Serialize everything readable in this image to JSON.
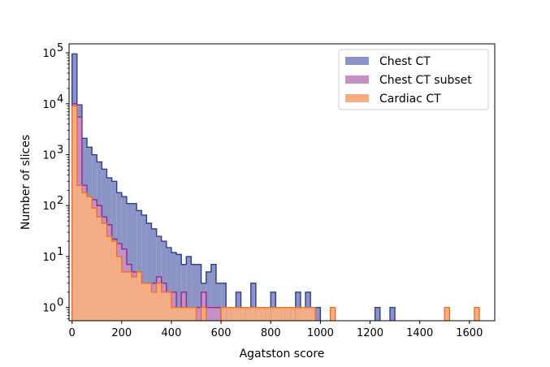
{
  "chart_data": {
    "type": "histogram",
    "xlabel": "Agatston score",
    "ylabel": "Number of slices",
    "xlim": [
      -12,
      1702
    ],
    "ylim": [
      0.55,
      150000
    ],
    "y_scale": "log",
    "x_ticks": [
      0,
      200,
      400,
      600,
      800,
      1000,
      1200,
      1400,
      1600
    ],
    "y_ticks": [
      {
        "value": 1,
        "base": "10",
        "exp": "0"
      },
      {
        "value": 10,
        "base": "10",
        "exp": "1"
      },
      {
        "value": 100,
        "base": "10",
        "exp": "2"
      },
      {
        "value": 1000,
        "base": "10",
        "exp": "3"
      },
      {
        "value": 10000,
        "base": "10",
        "exp": "4"
      },
      {
        "value": 100000,
        "base": "10",
        "exp": "5"
      }
    ],
    "bin_width": 20,
    "legend_position": "top-right",
    "series": [
      {
        "name": "Chest CT",
        "fill": "#8c94c6",
        "edge": "#2e3d8f",
        "bins": [
          [
            0,
            95000
          ],
          [
            20,
            9500
          ],
          [
            40,
            2100
          ],
          [
            60,
            1400
          ],
          [
            80,
            1000
          ],
          [
            100,
            720
          ],
          [
            120,
            520
          ],
          [
            140,
            350
          ],
          [
            160,
            300
          ],
          [
            180,
            180
          ],
          [
            200,
            150
          ],
          [
            220,
            110
          ],
          [
            240,
            110
          ],
          [
            260,
            80
          ],
          [
            280,
            65
          ],
          [
            300,
            45
          ],
          [
            320,
            35
          ],
          [
            340,
            25
          ],
          [
            360,
            20
          ],
          [
            380,
            15
          ],
          [
            400,
            12
          ],
          [
            420,
            11
          ],
          [
            440,
            7
          ],
          [
            460,
            10
          ],
          [
            480,
            7
          ],
          [
            500,
            7
          ],
          [
            520,
            3
          ],
          [
            540,
            5
          ],
          [
            560,
            7
          ],
          [
            580,
            3
          ],
          [
            600,
            3
          ],
          [
            640,
            1
          ],
          [
            660,
            2
          ],
          [
            700,
            1
          ],
          [
            720,
            3
          ],
          [
            760,
            1
          ],
          [
            800,
            2
          ],
          [
            820,
            1
          ],
          [
            860,
            1
          ],
          [
            900,
            2
          ],
          [
            940,
            2
          ],
          [
            960,
            1
          ],
          [
            980,
            1
          ],
          [
            1220,
            1
          ],
          [
            1280,
            1
          ]
        ]
      },
      {
        "name": "Chest CT subset",
        "fill": "#c690c6",
        "edge": "#8c2c8c",
        "bins": [
          [
            0,
            10000
          ],
          [
            20,
            5500
          ],
          [
            40,
            250
          ],
          [
            60,
            150
          ],
          [
            80,
            130
          ],
          [
            100,
            100
          ],
          [
            120,
            60
          ],
          [
            140,
            42
          ],
          [
            160,
            22
          ],
          [
            180,
            18
          ],
          [
            200,
            14
          ],
          [
            220,
            7
          ],
          [
            240,
            5
          ],
          [
            260,
            5
          ],
          [
            280,
            3
          ],
          [
            300,
            3
          ],
          [
            320,
            3
          ],
          [
            340,
            4
          ],
          [
            360,
            3
          ],
          [
            380,
            2
          ],
          [
            400,
            2
          ],
          [
            420,
            1
          ],
          [
            440,
            2
          ],
          [
            460,
            1
          ],
          [
            480,
            1
          ],
          [
            500,
            1
          ],
          [
            520,
            2
          ],
          [
            540,
            1
          ],
          [
            560,
            1
          ],
          [
            580,
            1
          ],
          [
            640,
            1
          ]
        ]
      },
      {
        "name": "Cardiac CT",
        "fill": "#f4ae86",
        "edge": "#f07028",
        "bins": [
          [
            0,
            9000
          ],
          [
            20,
            250
          ],
          [
            40,
            180
          ],
          [
            60,
            150
          ],
          [
            80,
            90
          ],
          [
            100,
            60
          ],
          [
            120,
            45
          ],
          [
            140,
            25
          ],
          [
            160,
            20
          ],
          [
            180,
            10
          ],
          [
            200,
            5
          ],
          [
            220,
            5
          ],
          [
            240,
            4
          ],
          [
            260,
            5
          ],
          [
            280,
            3
          ],
          [
            300,
            3
          ],
          [
            320,
            2
          ],
          [
            340,
            3
          ],
          [
            360,
            2
          ],
          [
            380,
            2
          ],
          [
            400,
            1
          ],
          [
            420,
            1
          ],
          [
            440,
            1
          ],
          [
            460,
            1
          ],
          [
            480,
            1
          ],
          [
            520,
            1
          ],
          [
            600,
            1
          ],
          [
            620,
            1
          ],
          [
            640,
            1
          ],
          [
            660,
            1
          ],
          [
            680,
            1
          ],
          [
            700,
            1
          ],
          [
            720,
            1
          ],
          [
            740,
            1
          ],
          [
            760,
            1
          ],
          [
            780,
            1
          ],
          [
            800,
            1
          ],
          [
            820,
            1
          ],
          [
            840,
            1
          ],
          [
            860,
            1
          ],
          [
            880,
            1
          ],
          [
            900,
            1
          ],
          [
            920,
            1
          ],
          [
            940,
            1
          ],
          [
            960,
            1
          ],
          [
            1040,
            1
          ],
          [
            1500,
            1
          ],
          [
            1620,
            1
          ]
        ]
      }
    ]
  }
}
